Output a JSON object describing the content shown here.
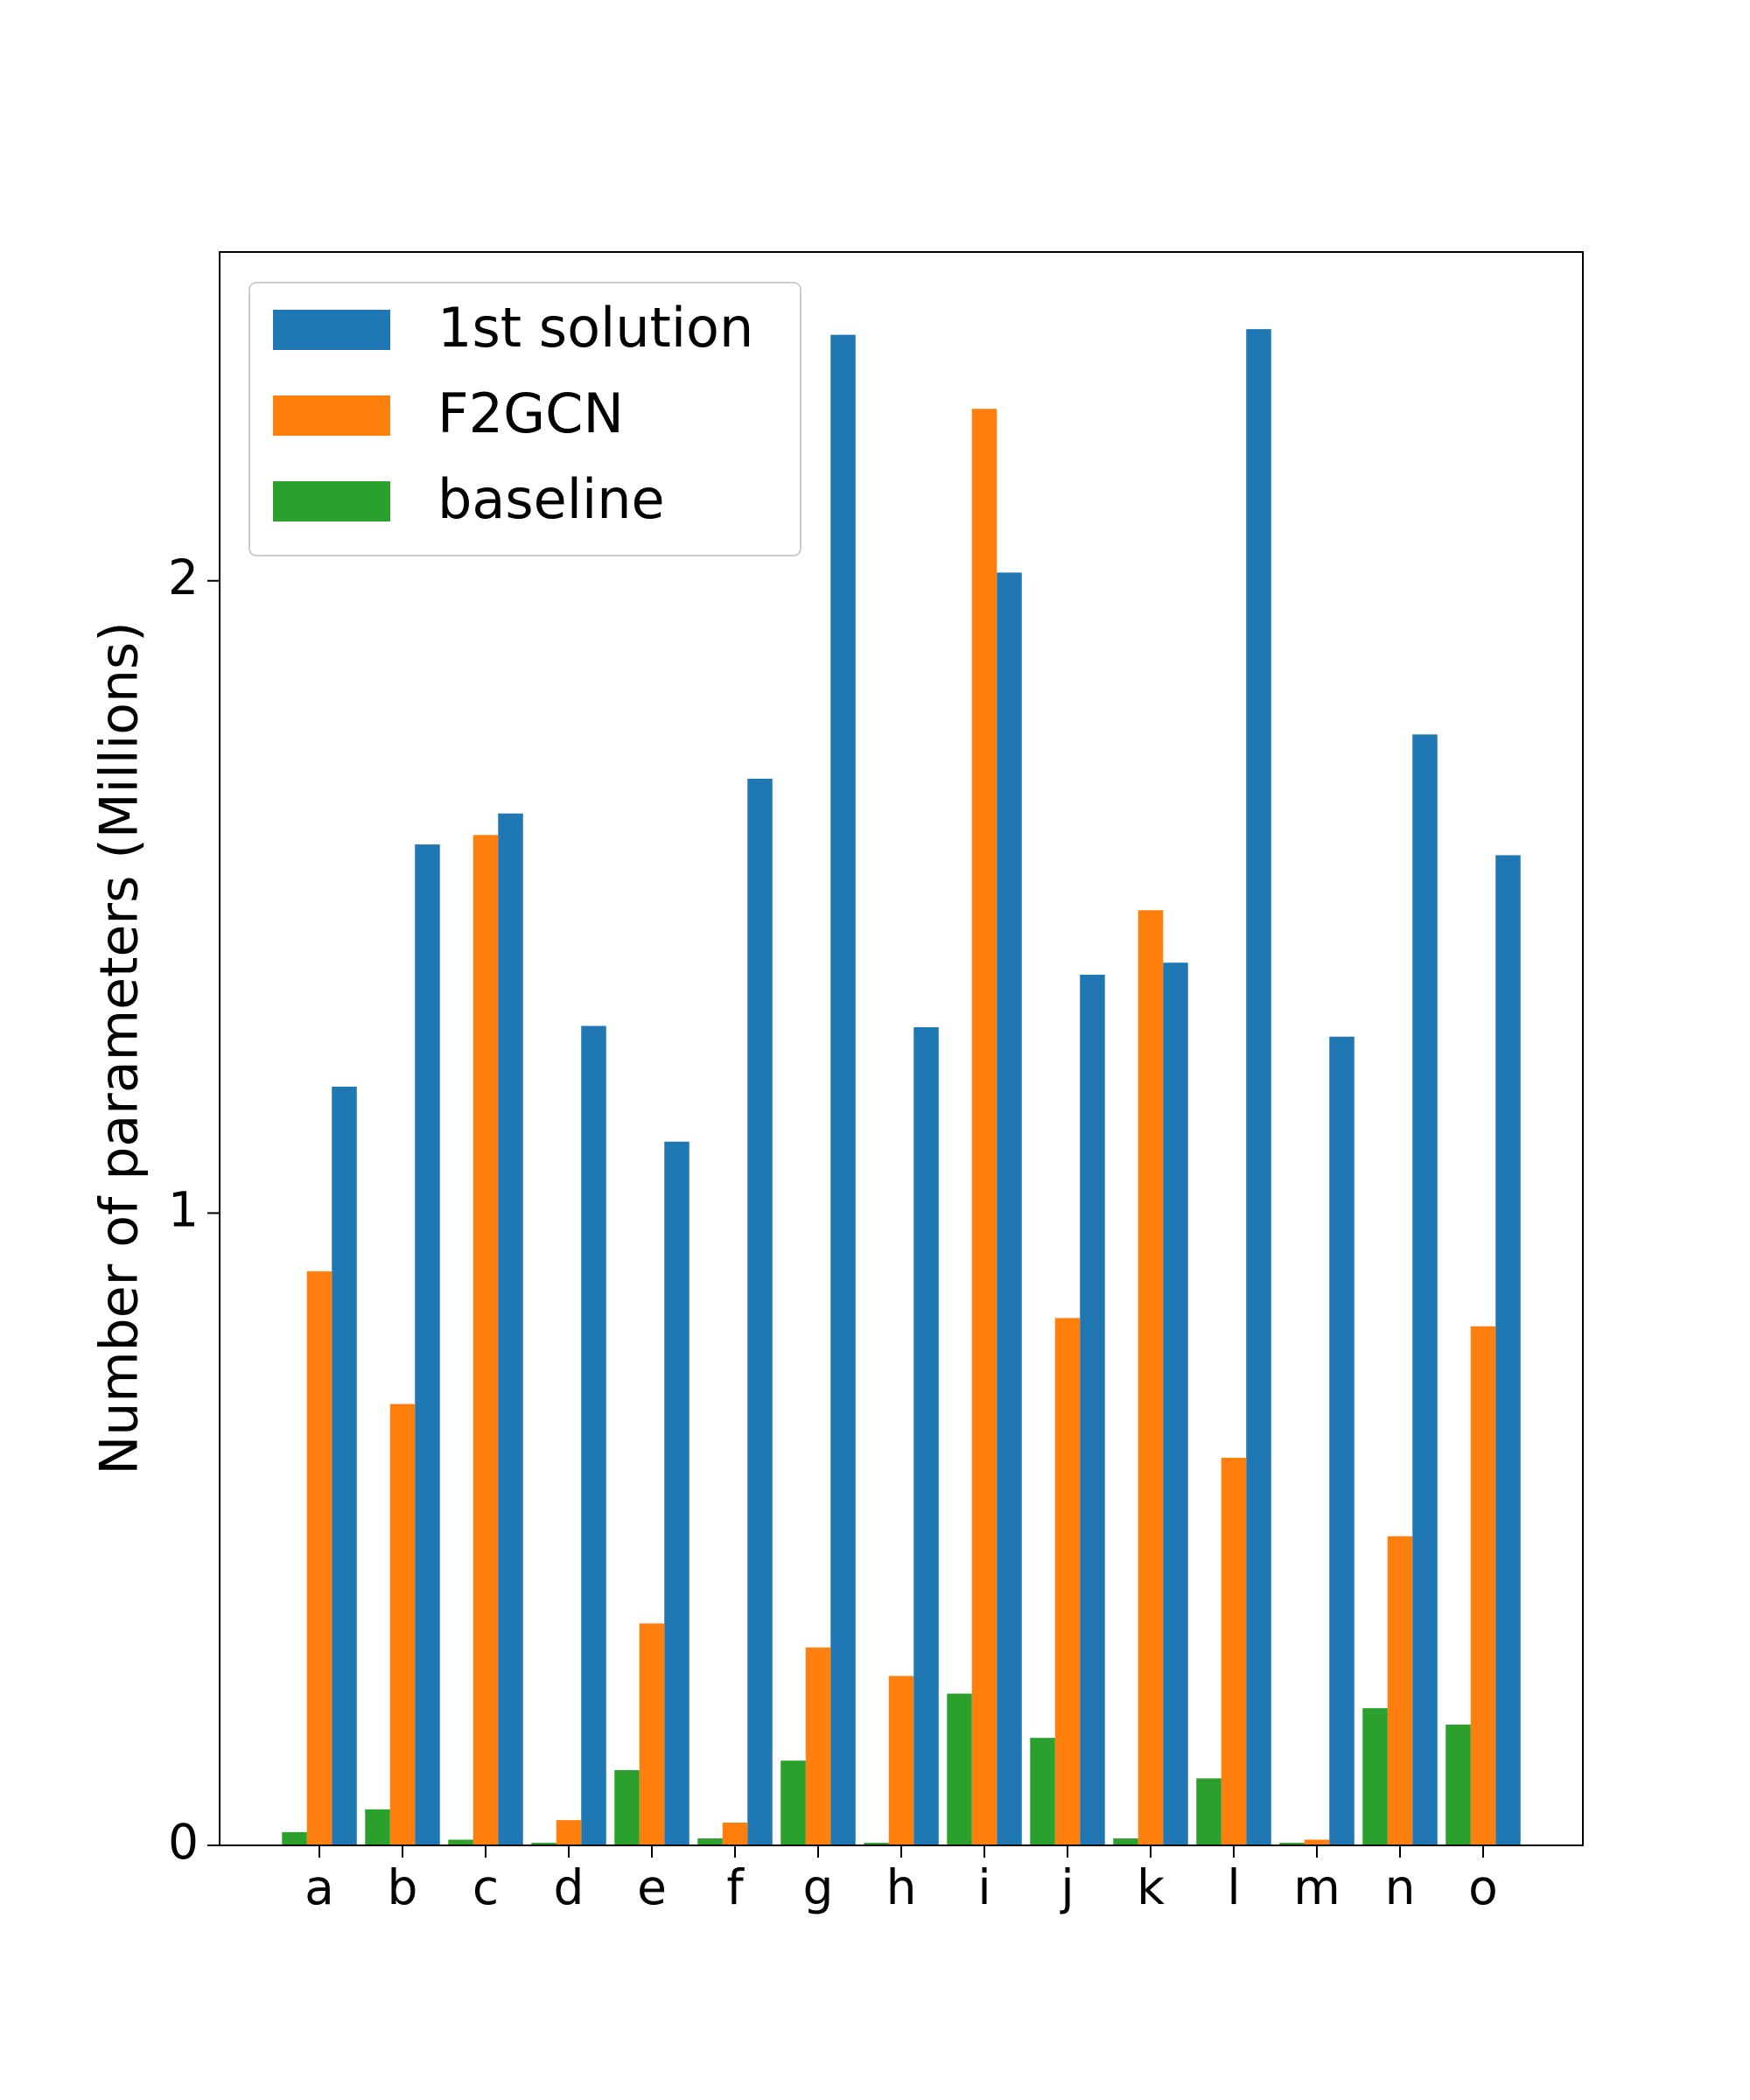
{
  "chart_data": {
    "type": "bar",
    "y_label": "Number of parameters (Millions)",
    "categories": [
      "a",
      "b",
      "c",
      "d",
      "e",
      "f",
      "g",
      "h",
      "i",
      "j",
      "k",
      "l",
      "m",
      "n",
      "o"
    ],
    "series": [
      {
        "name": "1st solution",
        "color": "#1f77b4",
        "values": [
          1.2,
          1.583,
          1.632,
          1.296,
          1.113,
          1.687,
          2.389,
          1.294,
          2.013,
          1.377,
          1.396,
          2.398,
          1.279,
          1.757,
          1.566
        ]
      },
      {
        "name": "F2GCN",
        "color": "#ff7f0e",
        "values": [
          0.908,
          0.698,
          1.598,
          0.04,
          0.351,
          0.036,
          0.313,
          0.268,
          2.272,
          0.834,
          1.479,
          0.613,
          0.009,
          0.489,
          0.821
        ]
      },
      {
        "name": "baseline",
        "color": "#2ca02c",
        "values": [
          0.021,
          0.057,
          0.009,
          0.004,
          0.119,
          0.011,
          0.134,
          0.004,
          0.24,
          0.17,
          0.011,
          0.106,
          0.004,
          0.217,
          0.191
        ]
      }
    ],
    "ylim": [
      0,
      2.52
    ],
    "yticks": [
      0,
      1,
      2
    ],
    "legend": "upper left"
  }
}
